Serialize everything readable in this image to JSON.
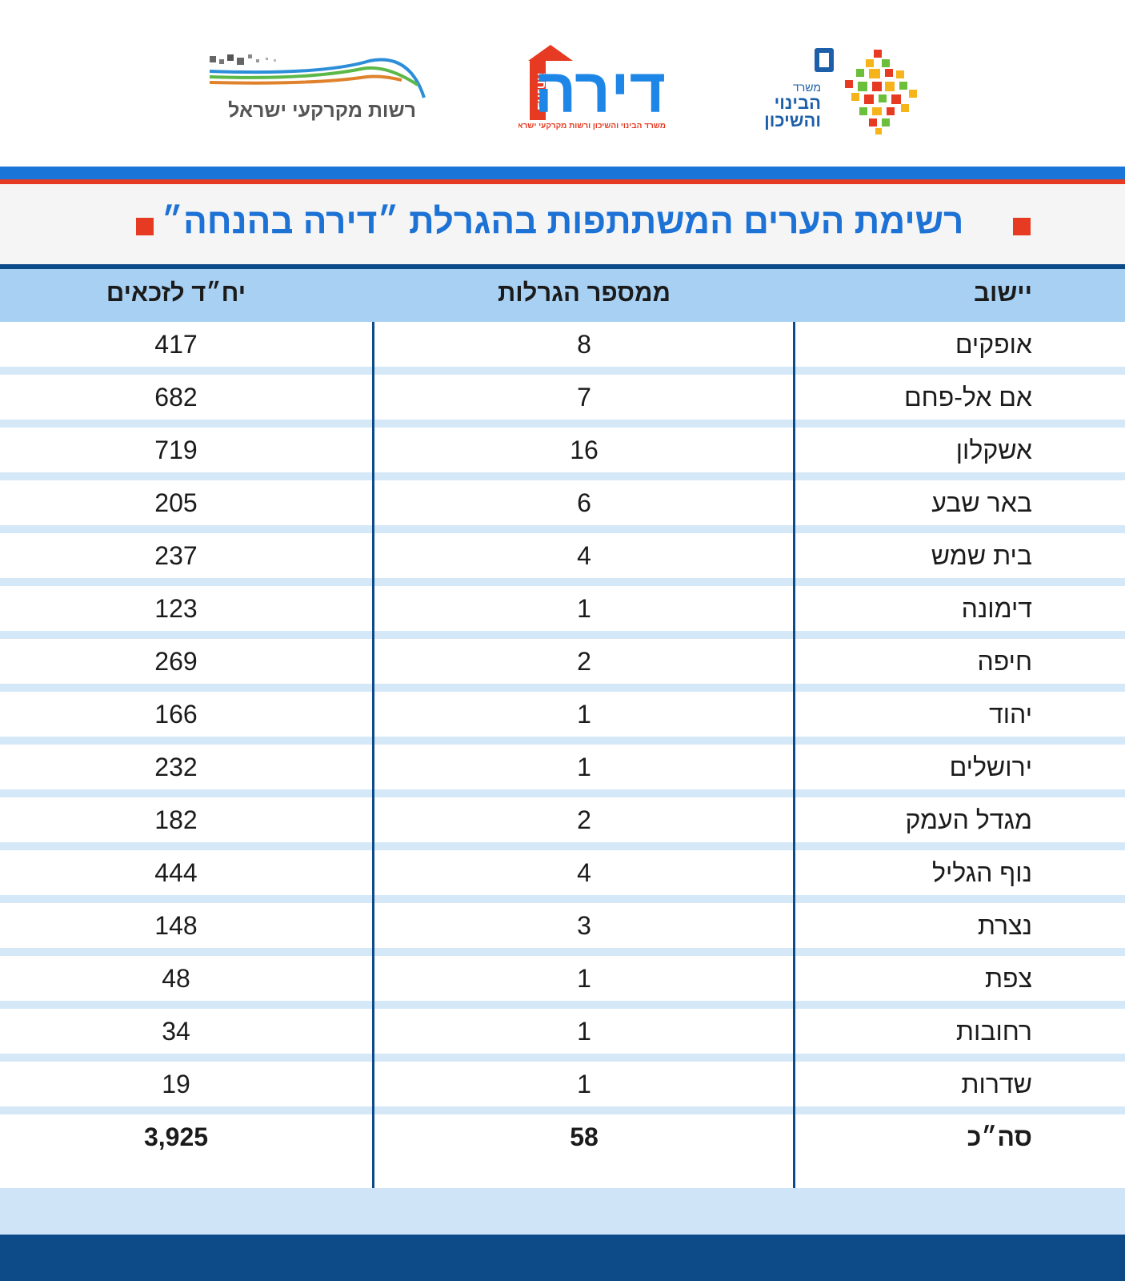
{
  "logos": {
    "rmi_text": "רשות מקרקעי ישראל",
    "dira_text": "דירה",
    "dira_badge": "בהנחה",
    "dira_sub": "משרד הבינוי והשיכון ורשות מקרקעי ישראל",
    "moh_line1": "משרד",
    "moh_line2": "הבינוי",
    "moh_line3": "והשיכון"
  },
  "title": "רשימת הערים המשתתפות בהגרלת ״דירה בהנחה״",
  "columns": {
    "city": "יישוב",
    "lotteries": "ממספר הגרלות",
    "units": "יח״ד לזכאים"
  },
  "rows": [
    {
      "city": "אופקים",
      "lotteries": "8",
      "units": "417"
    },
    {
      "city": "אם אל-פחם",
      "lotteries": "7",
      "units": "682"
    },
    {
      "city": "אשקלון",
      "lotteries": "16",
      "units": "719"
    },
    {
      "city": "באר שבע",
      "lotteries": "6",
      "units": "205"
    },
    {
      "city": "בית שמש",
      "lotteries": "4",
      "units": "237"
    },
    {
      "city": "דימונה",
      "lotteries": "1",
      "units": "123"
    },
    {
      "city": "חיפה",
      "lotteries": "2",
      "units": "269"
    },
    {
      "city": "יהוד",
      "lotteries": "1",
      "units": "166"
    },
    {
      "city": "ירושלים",
      "lotteries": "1",
      "units": "232"
    },
    {
      "city": "מגדל העמק",
      "lotteries": "2",
      "units": "182"
    },
    {
      "city": "נוף הגליל",
      "lotteries": "4",
      "units": "444"
    },
    {
      "city": "נצרת",
      "lotteries": "3",
      "units": "148"
    },
    {
      "city": "צפת",
      "lotteries": "1",
      "units": "48"
    },
    {
      "city": "רחובות",
      "lotteries": "1",
      "units": "34"
    },
    {
      "city": "שדרות",
      "lotteries": "1",
      "units": "19"
    }
  ],
  "total": {
    "city": "סה״כ",
    "lotteries": "58",
    "units": "3,925"
  },
  "colors": {
    "accent_blue": "#1976d8",
    "accent_red": "#e63a22",
    "navy": "#0d4a8a",
    "header_blue": "#a7d0f3"
  }
}
